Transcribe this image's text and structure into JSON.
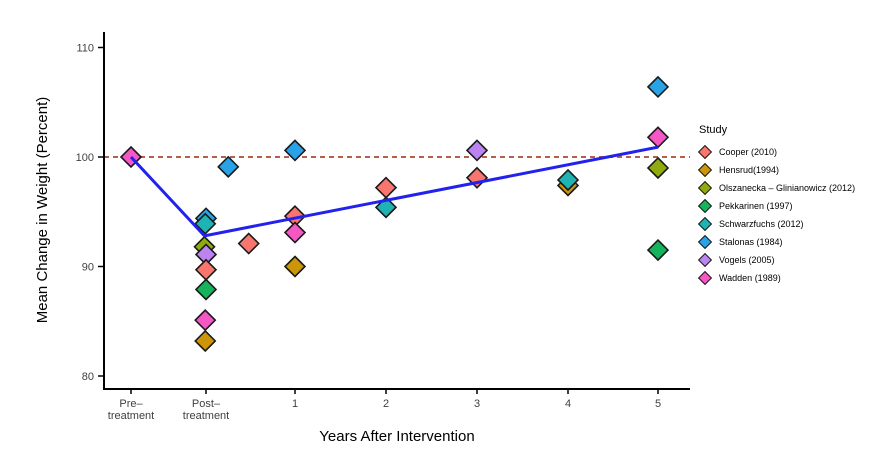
{
  "chart_data": {
    "type": "scatter",
    "title": "",
    "xlabel": "Years After Intervention",
    "ylabel": "Mean Change in Weight (Percent)",
    "x_tick_labels": [
      "Pre–treatment",
      "Post–treatment",
      "1",
      "2",
      "3",
      "4",
      "5"
    ],
    "y_ticks": [
      80,
      90,
      100,
      110
    ],
    "ylim": [
      78.8,
      111.6
    ],
    "grid": "off",
    "reference_line": {
      "y": 100,
      "style": "dashed",
      "color": "#B25F4B"
    },
    "trend_line": {
      "color": "#2222EE",
      "points": [
        [
          0,
          100.0
        ],
        [
          0.98,
          92.8
        ],
        [
          6,
          100.9
        ]
      ]
    },
    "legend": {
      "title": "Study",
      "position": "right",
      "items": [
        {
          "label": "Cooper (2010)",
          "color": "#F8766D"
        },
        {
          "label": "Hensrud(1994)",
          "color": "#CD9508"
        },
        {
          "label": "Olszanecka – Glinianowicz (2012)",
          "color": "#8FAB10"
        },
        {
          "label": "Pekkarinen (1997)",
          "color": "#14B35C"
        },
        {
          "label": "Schwarzfuchs (2012)",
          "color": "#1FB3B3"
        },
        {
          "label": "Stalonas (1984)",
          "color": "#29A3E8"
        },
        {
          "label": "Vogels (2005)",
          "color": "#BB84F0"
        },
        {
          "label": "Wadden (1989)",
          "color": "#F557C4"
        }
      ]
    },
    "points": [
      {
        "study": "Wadden (1989)",
        "x": 0.0,
        "y": 100.0
      },
      {
        "study": "Stalonas (1984)",
        "x": 1.0,
        "y": 94.4
      },
      {
        "study": "Schwarzfuchs (2012)",
        "x": 0.99,
        "y": 93.9
      },
      {
        "study": "Olszanecka – Glinianowicz (2012)",
        "x": 0.98,
        "y": 91.8
      },
      {
        "study": "Vogels (2005)",
        "x": 1.0,
        "y": 91.1
      },
      {
        "study": "Cooper (2010)",
        "x": 1.0,
        "y": 89.7
      },
      {
        "study": "Pekkarinen (1997)",
        "x": 1.0,
        "y": 87.9
      },
      {
        "study": "Wadden (1989)",
        "x": 0.99,
        "y": 85.1
      },
      {
        "study": "Hensrud(1994)",
        "x": 0.99,
        "y": 83.2
      },
      {
        "study": "Stalonas (1984)",
        "x": 1.25,
        "y": 99.1
      },
      {
        "study": "Cooper (2010)",
        "x": 1.48,
        "y": 92.1
      },
      {
        "study": "Stalonas (1984)",
        "x": 2.0,
        "y": 100.6
      },
      {
        "study": "Cooper (2010)",
        "x": 2.0,
        "y": 94.6
      },
      {
        "study": "Wadden (1989)",
        "x": 2.0,
        "y": 93.1
      },
      {
        "study": "Hensrud(1994)",
        "x": 2.0,
        "y": 90.0
      },
      {
        "study": "Cooper (2010)",
        "x": 3.0,
        "y": 97.2
      },
      {
        "study": "Schwarzfuchs (2012)",
        "x": 3.0,
        "y": 95.4
      },
      {
        "study": "Vogels (2005)",
        "x": 4.0,
        "y": 100.6
      },
      {
        "study": "Cooper (2010)",
        "x": 4.0,
        "y": 98.1
      },
      {
        "study": "Hensrud(1994)",
        "x": 5.0,
        "y": 97.4
      },
      {
        "study": "Schwarzfuchs (2012)",
        "x": 5.0,
        "y": 97.9
      },
      {
        "study": "Stalonas (1984)",
        "x": 6.0,
        "y": 106.4
      },
      {
        "study": "Wadden (1989)",
        "x": 6.0,
        "y": 101.8
      },
      {
        "study": "Olszanecka – Glinianowicz (2012)",
        "x": 6.0,
        "y": 99.0
      },
      {
        "study": "Pekkarinen (1997)",
        "x": 6.0,
        "y": 91.5
      }
    ]
  }
}
